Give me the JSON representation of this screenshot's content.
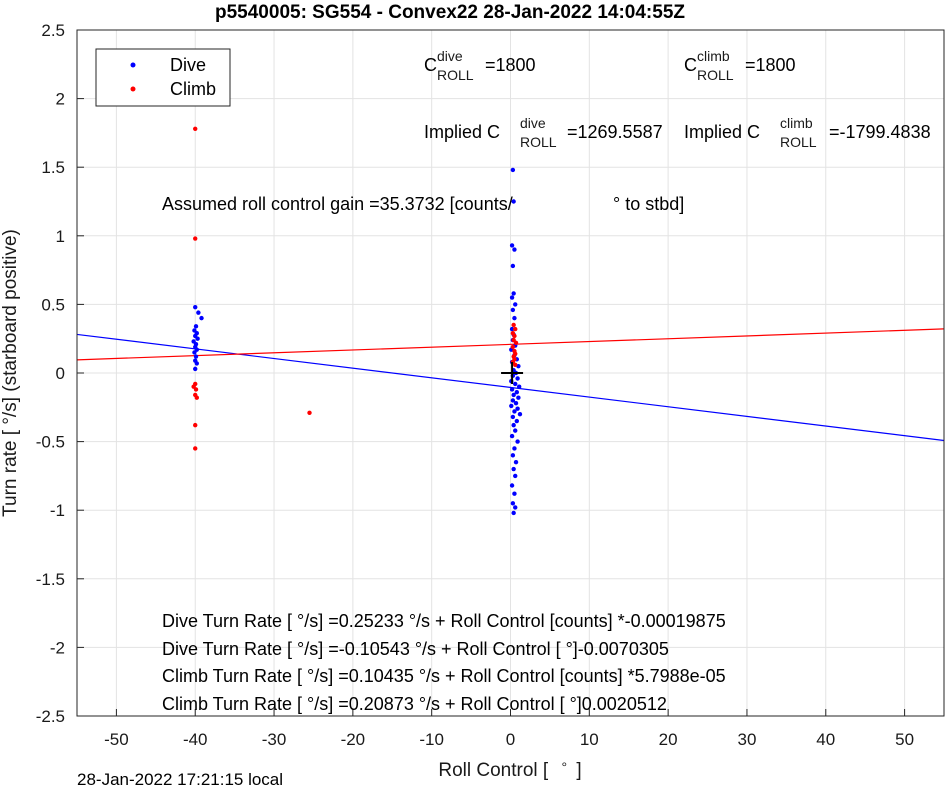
{
  "chart_data": {
    "type": "scatter",
    "title": "p5540005: SG554 - Convex22 28-Jan-2022 14:04:55Z",
    "xlabel_left": "Roll Control [",
    "xlabel_unit": "°",
    "xlabel_right": "]",
    "ylabel": "Turn rate [   °/s] (starboard positive)",
    "xlim": [
      -55,
      55
    ],
    "ylim": [
      -2.5,
      2.5
    ],
    "xticks": [
      -50,
      -40,
      -30,
      -20,
      -10,
      0,
      10,
      20,
      30,
      40,
      50
    ],
    "yticks": [
      2.5,
      2,
      1.5,
      1,
      0.5,
      0,
      -0.5,
      -1,
      -1.5,
      -2,
      -2.5
    ],
    "xtick_labels": [
      "-50",
      "-40",
      "-30",
      "-20",
      "-10",
      "0",
      "10",
      "20",
      "30",
      "40",
      "50"
    ],
    "ytick_labels": [
      "2.5",
      "2",
      "1.5",
      "1",
      "0.5",
      "0",
      "-0.5",
      "-1",
      "-1.5",
      "-2",
      "-2.5"
    ],
    "grid": true,
    "legend_position": "top-left",
    "series": [
      {
        "name": "Dive",
        "color": "#0000ff",
        "points": [
          [
            -40,
            0.48
          ],
          [
            -39.6,
            0.44
          ],
          [
            -39.2,
            0.4
          ],
          [
            -39.9,
            0.34
          ],
          [
            -40.1,
            0.31
          ],
          [
            -39.8,
            0.29
          ],
          [
            -40,
            0.27
          ],
          [
            -39.7,
            0.25
          ],
          [
            -40.2,
            0.23
          ],
          [
            -39.9,
            0.21
          ],
          [
            -40,
            0.19
          ],
          [
            -39.8,
            0.17
          ],
          [
            -40.1,
            0.15
          ],
          [
            -39.9,
            0.12
          ],
          [
            -40,
            0.09
          ],
          [
            -39.8,
            0.07
          ],
          [
            -40,
            0.03
          ],
          [
            0.3,
            1.48
          ],
          [
            0.4,
            1.25
          ],
          [
            0.2,
            0.93
          ],
          [
            0.5,
            0.9
          ],
          [
            0.3,
            0.78
          ],
          [
            0.4,
            0.58
          ],
          [
            0.2,
            0.55
          ],
          [
            0.6,
            0.5
          ],
          [
            0.3,
            0.46
          ],
          [
            0.5,
            0.4
          ],
          [
            0.2,
            0.32
          ],
          [
            0.4,
            0.28
          ],
          [
            0.3,
            0.24
          ],
          [
            0.6,
            0.2
          ],
          [
            0.1,
            0.17
          ],
          [
            0.5,
            0.13
          ],
          [
            0.8,
            0.1
          ],
          [
            0.2,
            0.08
          ],
          [
            1.0,
            0.05
          ],
          [
            0.4,
            0.02
          ],
          [
            0.7,
            0.0
          ],
          [
            0.3,
            -0.02
          ],
          [
            0.9,
            -0.04
          ],
          [
            0.1,
            -0.06
          ],
          [
            0.6,
            -0.08
          ],
          [
            1.1,
            -0.1
          ],
          [
            0.2,
            -0.12
          ],
          [
            0.8,
            -0.14
          ],
          [
            0.4,
            -0.16
          ],
          [
            1.0,
            -0.18
          ],
          [
            0.3,
            -0.2
          ],
          [
            0.7,
            -0.22
          ],
          [
            0.1,
            -0.24
          ],
          [
            0.9,
            -0.26
          ],
          [
            0.5,
            -0.28
          ],
          [
            1.2,
            -0.3
          ],
          [
            0.3,
            -0.32
          ],
          [
            0.8,
            -0.35
          ],
          [
            0.4,
            -0.38
          ],
          [
            0.6,
            -0.42
          ],
          [
            0.2,
            -0.46
          ],
          [
            0.9,
            -0.5
          ],
          [
            0.5,
            -0.55
          ],
          [
            0.3,
            -0.6
          ],
          [
            0.7,
            -0.65
          ],
          [
            0.4,
            -0.7
          ],
          [
            0.6,
            -0.75
          ],
          [
            0.2,
            -0.82
          ],
          [
            0.5,
            -0.88
          ],
          [
            0.3,
            -0.95
          ],
          [
            0.6,
            -0.98
          ],
          [
            0.4,
            -1.02
          ]
        ]
      },
      {
        "name": "Climb",
        "color": "#ff0000",
        "points": [
          [
            -40,
            1.78
          ],
          [
            -40,
            0.98
          ],
          [
            -40,
            -0.08
          ],
          [
            -40.2,
            -0.1
          ],
          [
            -39.9,
            -0.12
          ],
          [
            -40,
            -0.16
          ],
          [
            -39.8,
            -0.18
          ],
          [
            -40,
            -0.38
          ],
          [
            -40,
            -0.55
          ],
          [
            -25.5,
            -0.29
          ],
          [
            0.4,
            0.35
          ],
          [
            0.6,
            0.32
          ],
          [
            0.3,
            0.29
          ],
          [
            0.5,
            0.27
          ],
          [
            0.4,
            0.24
          ],
          [
            0.7,
            0.22
          ],
          [
            0.3,
            0.19
          ],
          [
            0.5,
            0.16
          ],
          [
            0.6,
            0.14
          ],
          [
            0.4,
            0.12
          ],
          [
            0.5,
            0.1
          ],
          [
            0.3,
            0.08
          ],
          [
            0.6,
            0.06
          ]
        ]
      }
    ],
    "fit_lines": [
      {
        "name": "Dive fit",
        "color": "#0000ff",
        "slope": -0.0070305,
        "intercept": -0.10543
      },
      {
        "name": "Climb fit",
        "color": "#ff0000",
        "slope": 0.0020512,
        "intercept": 0.20873
      }
    ],
    "center_marker": {
      "x": 0.2,
      "y": 0.0,
      "color": "#000000"
    },
    "annotations": {
      "c_roll_dive": {
        "base": "C",
        "sup": "dive",
        "sub": "ROLL",
        "value": "=1800"
      },
      "c_roll_climb": {
        "base": "C",
        "sup": "climb",
        "sub": "ROLL",
        "value": "=1800"
      },
      "implied_dive": {
        "prefix": "Implied C",
        "sup": "dive",
        "sub": "ROLL",
        "value": "=1269.5587"
      },
      "implied_climb": {
        "prefix": "Implied C",
        "sup": "climb",
        "sub": "ROLL",
        "value": "=-1799.4838"
      },
      "gain_left": "Assumed roll control gain =35.3732 [counts/",
      "gain_right": "°  to stbd]",
      "fit_lines_text": [
        "Dive Turn Rate [    °/s] =0.25233    °/s + Roll Control [counts] *-0.00019875",
        "Dive Turn Rate [    °/s] =-0.10543    °/s + Roll Control [     °]-0.0070305",
        "Climb Turn Rate [    °/s] =0.10435    °/s + Roll Control [counts] *5.7988e-05",
        "Climb Turn Rate [    °/s] =0.20873    °/s + Roll Control [    °]0.0020512"
      ]
    }
  },
  "footer": {
    "timestamp": "28-Jan-2022 17:21:15 local"
  }
}
